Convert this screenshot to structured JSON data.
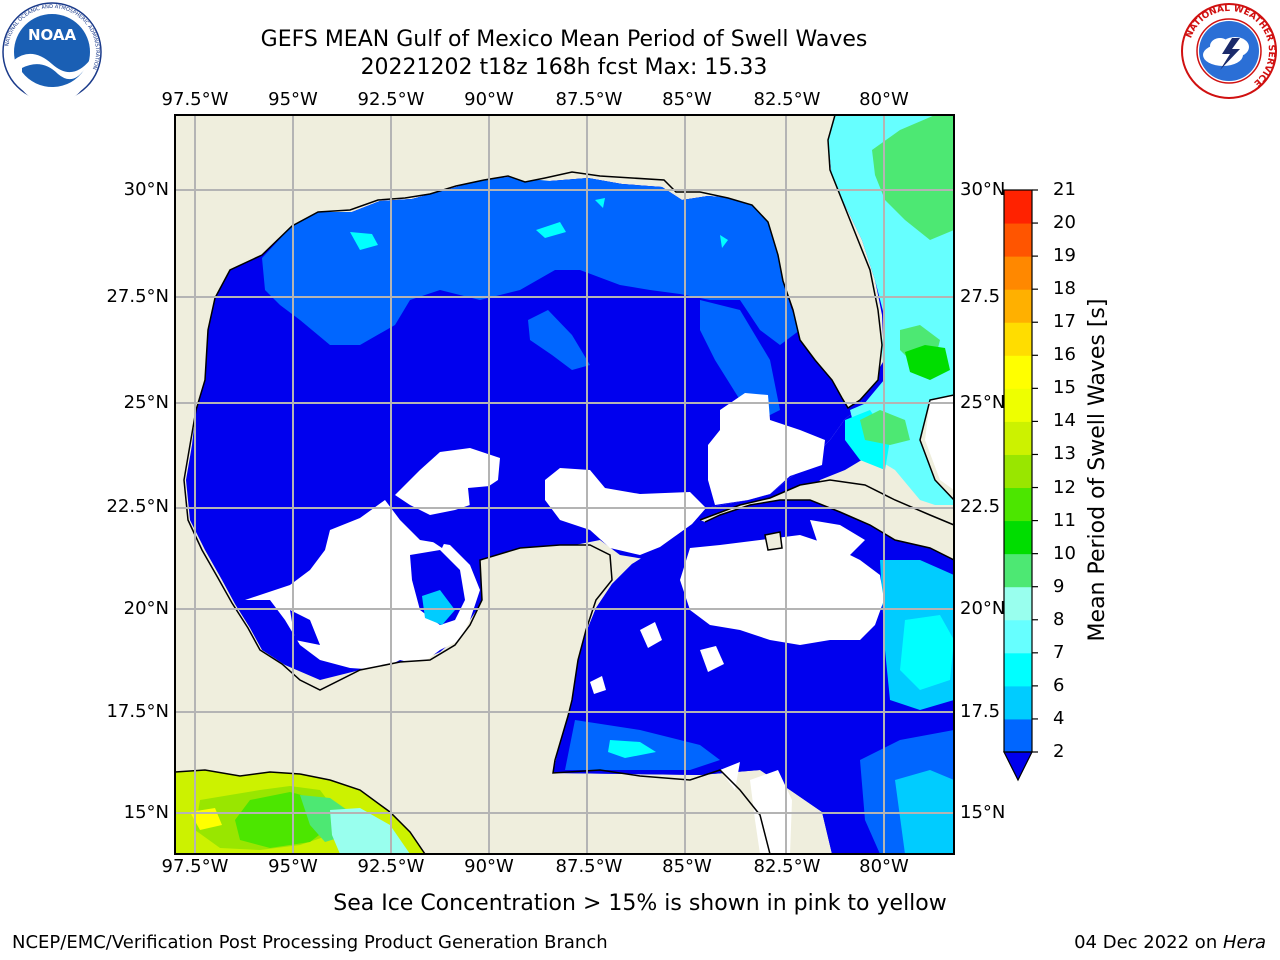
{
  "title": {
    "line1": "GEFS MEAN Gulf of Mexico Mean Period of Swell Waves",
    "line2": "20221202 t18z 168h fcst   Max: 15.33"
  },
  "map": {
    "lon_ticks": [
      "97.5°W",
      "95°W",
      "92.5°W",
      "90°W",
      "87.5°W",
      "85°W",
      "82.5°W",
      "80°W"
    ],
    "lat_ticks_left": [
      "30°N",
      "27.5°N",
      "25°N",
      "22.5°N",
      "20°N",
      "17.5°N",
      "15°N"
    ],
    "lat_ticks_right": [
      "30°N",
      "27.5",
      "25°N",
      "22.5",
      "20°N",
      "17.5",
      "15°N"
    ],
    "lon_range": [
      -98.5,
      -78.5
    ],
    "lat_range": [
      14,
      31.5
    ],
    "colors": {
      "land": "#efeedd",
      "no_data": "#ffffff",
      "grid": "#b4b4b4"
    }
  },
  "colorbar": {
    "label": "Mean Period of Swell Waves [s]",
    "ticks": [
      "2",
      "4",
      "6",
      "7",
      "8",
      "9",
      "10",
      "11",
      "12",
      "13",
      "14",
      "15",
      "16",
      "17",
      "18",
      "19",
      "20",
      "21"
    ],
    "colors": [
      "#0066ff",
      "#00ccff",
      "#00ffff",
      "#66ffff",
      "#99ffee",
      "#4de873",
      "#00dd00",
      "#4ce600",
      "#99e600",
      "#ccf200",
      "#eeff00",
      "#ffff00",
      "#ffdd00",
      "#ffb000",
      "#ff8800",
      "#ff5500",
      "#ff2200",
      "#ff0000"
    ],
    "under_color": "#0000ee"
  },
  "notes": {
    "sea_ice": "Sea Ice Concentration > 15% is shown in pink to yellow"
  },
  "footer": {
    "left": "NCEP/EMC/Verification Post Processing Product Generation Branch",
    "date": "04 Dec 2022 on ",
    "machine": "Hera"
  },
  "logos": {
    "noaa": {
      "text": "NOAA",
      "ring": "NATIONAL OCEANIC AND ATMOSPHERIC ADMINISTRATION"
    },
    "nws": {
      "ring": "NATIONAL WEATHER SERVICE"
    }
  }
}
